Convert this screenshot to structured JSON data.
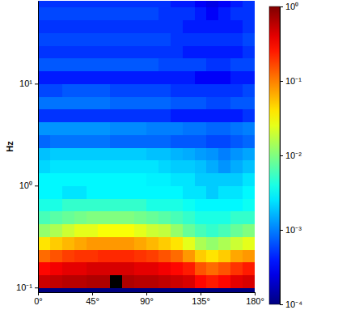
{
  "chart_data": {
    "type": "heatmap",
    "ylabel": "Hz",
    "log": "y",
    "xlim": [
      0,
      180
    ],
    "ylim": [
      0.09,
      65
    ],
    "xticks": [
      {
        "value": 0,
        "label": "0°"
      },
      {
        "value": 45,
        "label": "45°"
      },
      {
        "value": 90,
        "label": "90°"
      },
      {
        "value": 135,
        "label": "135°"
      },
      {
        "value": 180,
        "label": "180°"
      }
    ],
    "yticks": [
      {
        "value": 0.1,
        "label": "10⁻¹"
      },
      {
        "value": 1,
        "label": "10⁰"
      },
      {
        "value": 10,
        "label": "10¹"
      }
    ],
    "x_bins": [
      0,
      10,
      20,
      30,
      40,
      50,
      60,
      70,
      80,
      90,
      100,
      110,
      120,
      130,
      140,
      150,
      160,
      170,
      180
    ],
    "y_bins": [
      0.09,
      0.1,
      0.1334,
      0.1778,
      0.2371,
      0.3162,
      0.4217,
      0.5623,
      0.7499,
      1,
      1.334,
      1.778,
      2.371,
      3.162,
      4.217,
      5.623,
      7.499,
      10,
      13.34,
      17.78,
      23.71,
      31.62,
      42.17,
      56.23,
      74.99
    ],
    "cells": [
      [
        0.0001,
        0.0001,
        0.0001,
        0.0001,
        0.0001,
        0.0001,
        0.0001,
        0.0001,
        0.0001,
        0.0001,
        0.0001,
        0.0001,
        0.0001,
        0.0001,
        0.0001,
        0.0001,
        0.0001,
        0.0001
      ],
      [
        0.5,
        0.55,
        0.6,
        0.6,
        0.65,
        0.65,
        null,
        0.65,
        0.6,
        0.6,
        0.55,
        0.5,
        0.45,
        0.3,
        0.25,
        0.3,
        0.4,
        0.45
      ],
      [
        0.3,
        0.35,
        0.4,
        0.4,
        0.45,
        0.45,
        0.45,
        0.45,
        0.4,
        0.4,
        0.35,
        0.3,
        0.25,
        0.15,
        0.12,
        0.15,
        0.2,
        0.25
      ],
      [
        0.12,
        0.15,
        0.18,
        0.2,
        0.2,
        0.22,
        0.22,
        0.22,
        0.2,
        0.18,
        0.15,
        0.12,
        0.08,
        0.05,
        0.04,
        0.05,
        0.07,
        0.08
      ],
      [
        0.04,
        0.05,
        0.06,
        0.07,
        0.08,
        0.08,
        0.08,
        0.08,
        0.07,
        0.06,
        0.05,
        0.04,
        0.025,
        0.015,
        0.012,
        0.015,
        0.02,
        0.025
      ],
      [
        0.012,
        0.015,
        0.02,
        0.025,
        0.025,
        0.03,
        0.03,
        0.03,
        0.025,
        0.02,
        0.018,
        0.012,
        0.008,
        0.006,
        0.005,
        0.006,
        0.008,
        0.01
      ],
      [
        0.006,
        0.007,
        0.008,
        0.009,
        0.01,
        0.01,
        0.01,
        0.01,
        0.009,
        0.008,
        0.007,
        0.006,
        0.005,
        0.004,
        0.004,
        0.004,
        0.005,
        0.005
      ],
      [
        0.004,
        0.004,
        0.005,
        0.005,
        0.005,
        0.005,
        0.005,
        0.005,
        0.005,
        0.004,
        0.004,
        0.004,
        0.0035,
        0.003,
        0.003,
        0.003,
        0.003,
        0.0035
      ],
      [
        0.003,
        0.003,
        0.0025,
        0.0025,
        0.003,
        0.003,
        0.003,
        0.003,
        0.003,
        0.003,
        0.003,
        0.003,
        0.0025,
        0.0025,
        0.002,
        0.0025,
        0.0025,
        0.003
      ],
      [
        0.003,
        0.003,
        0.003,
        0.003,
        0.003,
        0.003,
        0.003,
        0.003,
        0.003,
        0.0028,
        0.0028,
        0.0025,
        0.0025,
        0.002,
        0.002,
        0.002,
        0.002,
        0.0025
      ],
      [
        0.0022,
        0.0025,
        0.0025,
        0.0025,
        0.0025,
        0.0025,
        0.0025,
        0.0025,
        0.0025,
        0.0025,
        0.0022,
        0.002,
        0.002,
        0.0018,
        0.0015,
        0.0012,
        0.0015,
        0.0018
      ],
      [
        0.0018,
        0.002,
        0.002,
        0.002,
        0.002,
        0.002,
        0.002,
        0.002,
        0.002,
        0.0018,
        0.0018,
        0.0016,
        0.0015,
        0.0013,
        0.0012,
        0.001,
        0.0012,
        0.0014
      ],
      [
        0.0008,
        0.0009,
        0.0009,
        0.0009,
        0.0009,
        0.0009,
        0.0008,
        0.0008,
        0.0008,
        0.0008,
        0.0008,
        0.0007,
        0.0007,
        0.0007,
        0.0006,
        0.0006,
        0.0007,
        0.0008
      ],
      [
        0.0012,
        0.0012,
        0.0012,
        0.0012,
        0.0012,
        0.0012,
        0.0011,
        0.0011,
        0.0011,
        0.001,
        0.001,
        0.001,
        0.0009,
        0.0009,
        0.0008,
        0.0008,
        0.0009,
        0.001
      ],
      [
        0.0005,
        0.0005,
        0.0005,
        0.0005,
        0.0005,
        0.0005,
        0.0005,
        0.0005,
        0.0005,
        0.0005,
        0.0005,
        0.0004,
        0.0004,
        0.0004,
        0.0004,
        0.0004,
        0.0004,
        0.0005
      ],
      [
        0.0009,
        0.0009,
        0.0009,
        0.0009,
        0.0009,
        0.0009,
        0.0008,
        0.0008,
        0.0008,
        0.0008,
        0.0008,
        0.0007,
        0.0007,
        0.0007,
        0.0006,
        0.0006,
        0.0007,
        0.0007
      ],
      [
        0.0006,
        0.0006,
        0.0007,
        0.0007,
        0.0007,
        0.0007,
        0.0006,
        0.0006,
        0.0006,
        0.0006,
        0.0006,
        0.0005,
        0.0005,
        0.0005,
        0.0005,
        0.0005,
        0.0005,
        0.0006
      ],
      [
        0.0004,
        0.0004,
        0.0004,
        0.0004,
        0.0004,
        0.0004,
        0.0004,
        0.0004,
        0.0004,
        0.0004,
        0.0004,
        0.0004,
        0.0004,
        0.0003,
        0.0003,
        0.0003,
        0.0004,
        0.0004
      ],
      [
        0.0007,
        0.0007,
        0.0007,
        0.0007,
        0.0007,
        0.0007,
        0.0007,
        0.0007,
        0.0007,
        0.0007,
        0.0006,
        0.0006,
        0.0006,
        0.0006,
        0.0005,
        0.0005,
        0.0006,
        0.0006
      ],
      [
        0.0005,
        0.0005,
        0.0005,
        0.0005,
        0.0005,
        0.0005,
        0.0005,
        0.0005,
        0.0005,
        0.0005,
        0.0005,
        0.0005,
        0.0004,
        0.0004,
        0.0004,
        0.0004,
        0.0004,
        0.0005
      ],
      [
        0.0006,
        0.0006,
        0.0006,
        0.0006,
        0.0006,
        0.0006,
        0.0006,
        0.0006,
        0.0006,
        0.0006,
        0.0006,
        0.0005,
        0.0005,
        0.0005,
        0.0005,
        0.0005,
        0.0005,
        0.0006
      ],
      [
        0.0005,
        0.0005,
        0.0005,
        0.0005,
        0.0005,
        0.0005,
        0.0005,
        0.0005,
        0.0005,
        0.0005,
        0.0005,
        0.0005,
        0.0004,
        0.0004,
        0.0004,
        0.0004,
        0.0004,
        0.0005
      ],
      [
        0.0006,
        0.0006,
        0.0006,
        0.0006,
        0.0006,
        0.0006,
        0.0006,
        0.0006,
        0.0006,
        0.0006,
        0.0005,
        0.0005,
        0.0005,
        0.0004,
        0.0003,
        0.0004,
        0.0005,
        0.0005
      ],
      [
        0.0005,
        0.0005,
        0.0005,
        0.0005,
        0.0005,
        0.0005,
        0.0005,
        0.0005,
        0.0005,
        0.0005,
        0.0005,
        0.0004,
        0.0004,
        0.0003,
        0.00025,
        0.0003,
        0.0004,
        0.0005
      ]
    ],
    "color_range": [
      0.0001,
      1
    ],
    "color_ticks": [
      {
        "value": 0.0001,
        "label": "10⁻⁴"
      },
      {
        "value": 0.001,
        "label": "10⁻³"
      },
      {
        "value": 0.01,
        "label": "10⁻²"
      },
      {
        "value": 0.1,
        "label": "10⁻¹"
      },
      {
        "value": 1,
        "label": "10⁰"
      }
    ]
  }
}
